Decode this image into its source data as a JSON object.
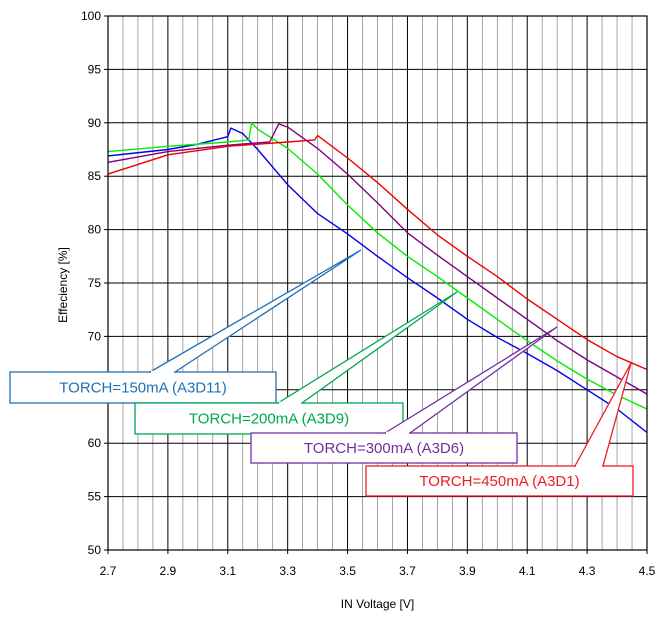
{
  "chart_data": {
    "type": "line",
    "xlabel": "IN Voltage [V]",
    "ylabel": "Effeciency [%]",
    "xlim": [
      2.7,
      4.5
    ],
    "ylim": [
      50,
      100
    ],
    "x_ticks": [
      "2.7",
      "2.9",
      "3.1",
      "3.3",
      "3.5",
      "3.7",
      "3.9",
      "4.1",
      "4.3",
      "4.5"
    ],
    "y_ticks": [
      "50",
      "55",
      "60",
      "65",
      "70",
      "75",
      "80",
      "85",
      "90",
      "95",
      "100"
    ],
    "minor_x_step": 0.05,
    "grid": true,
    "series": [
      {
        "name": "TORCH=150mA (A3D11)",
        "color": "#0000ee",
        "label_color": "#1f6fb5",
        "points": [
          [
            2.7,
            86.9
          ],
          [
            2.9,
            87.5
          ],
          [
            3.0,
            88.0
          ],
          [
            3.1,
            88.7
          ],
          [
            3.11,
            89.5
          ],
          [
            3.15,
            89.0
          ],
          [
            3.2,
            87.5
          ],
          [
            3.3,
            84.2
          ],
          [
            3.4,
            81.5
          ],
          [
            3.5,
            79.6
          ],
          [
            3.6,
            77.5
          ],
          [
            3.7,
            75.5
          ],
          [
            3.8,
            73.6
          ],
          [
            3.9,
            71.6
          ],
          [
            4.0,
            69.9
          ],
          [
            4.1,
            68.4
          ],
          [
            4.2,
            66.8
          ],
          [
            4.3,
            65.0
          ],
          [
            4.4,
            63.2
          ],
          [
            4.5,
            61.0
          ]
        ]
      },
      {
        "name": "TORCH=200mA (A3D9)",
        "color": "#00ee00",
        "label_color": "#00a651",
        "points": [
          [
            2.7,
            87.3
          ],
          [
            2.9,
            87.8
          ],
          [
            3.1,
            88.2
          ],
          [
            3.17,
            88.4
          ],
          [
            3.18,
            90.0
          ],
          [
            3.2,
            89.4
          ],
          [
            3.3,
            87.6
          ],
          [
            3.4,
            85.2
          ],
          [
            3.5,
            82.3
          ],
          [
            3.6,
            79.7
          ],
          [
            3.7,
            77.5
          ],
          [
            3.8,
            75.6
          ],
          [
            3.9,
            73.6
          ],
          [
            4.0,
            71.6
          ],
          [
            4.1,
            69.6
          ],
          [
            4.2,
            67.7
          ],
          [
            4.3,
            66.0
          ],
          [
            4.4,
            64.5
          ],
          [
            4.5,
            63.2
          ]
        ]
      },
      {
        "name": "TORCH=300mA (A3D6)",
        "color": "#800080",
        "label_color": "#7030a0",
        "points": [
          [
            2.7,
            86.3
          ],
          [
            2.9,
            87.3
          ],
          [
            3.1,
            87.9
          ],
          [
            3.24,
            88.2
          ],
          [
            3.27,
            89.9
          ],
          [
            3.3,
            89.6
          ],
          [
            3.4,
            87.6
          ],
          [
            3.5,
            85.2
          ],
          [
            3.6,
            82.5
          ],
          [
            3.7,
            79.7
          ],
          [
            3.8,
            77.6
          ],
          [
            3.9,
            75.6
          ],
          [
            4.0,
            73.6
          ],
          [
            4.1,
            71.6
          ],
          [
            4.2,
            69.6
          ],
          [
            4.3,
            67.8
          ],
          [
            4.4,
            66.2
          ],
          [
            4.5,
            64.6
          ]
        ]
      },
      {
        "name": "TORCH=450mA (A3D1)",
        "color": "#ee0000",
        "label_color": "#ed1c24",
        "points": [
          [
            2.7,
            85.2
          ],
          [
            2.9,
            87.0
          ],
          [
            3.1,
            87.8
          ],
          [
            3.3,
            88.2
          ],
          [
            3.39,
            88.4
          ],
          [
            3.4,
            88.8
          ],
          [
            3.5,
            86.7
          ],
          [
            3.6,
            84.4
          ],
          [
            3.7,
            81.9
          ],
          [
            3.8,
            79.5
          ],
          [
            3.9,
            77.5
          ],
          [
            4.0,
            75.6
          ],
          [
            4.1,
            73.5
          ],
          [
            4.2,
            71.6
          ],
          [
            4.3,
            69.7
          ],
          [
            4.4,
            68.1
          ],
          [
            4.5,
            66.9
          ]
        ]
      }
    ]
  }
}
